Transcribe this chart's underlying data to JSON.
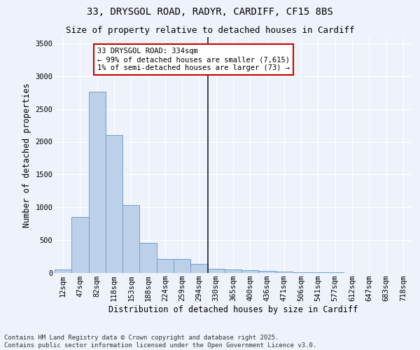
{
  "title_line1": "33, DRYSGOL ROAD, RADYR, CARDIFF, CF15 8BS",
  "title_line2": "Size of property relative to detached houses in Cardiff",
  "xlabel": "Distribution of detached houses by size in Cardiff",
  "ylabel": "Number of detached properties",
  "categories": [
    "12sqm",
    "47sqm",
    "82sqm",
    "118sqm",
    "153sqm",
    "188sqm",
    "224sqm",
    "259sqm",
    "294sqm",
    "330sqm",
    "365sqm",
    "400sqm",
    "436sqm",
    "471sqm",
    "506sqm",
    "541sqm",
    "577sqm",
    "612sqm",
    "647sqm",
    "683sqm",
    "718sqm"
  ],
  "values": [
    55,
    850,
    2760,
    2100,
    1030,
    460,
    215,
    215,
    135,
    65,
    55,
    40,
    30,
    25,
    15,
    10,
    8,
    5,
    4,
    3,
    2
  ],
  "bar_color": "#bdd0e9",
  "bar_edge_color": "#6fa0cb",
  "vline_x_index": 9,
  "vline_color": "#222222",
  "annotation_title": "33 DRYSGOL ROAD: 334sqm",
  "annotation_line1": "← 99% of detached houses are smaller (7,615)",
  "annotation_line2": "1% of semi-detached houses are larger (73) →",
  "annotation_box_facecolor": "#ffffff",
  "annotation_box_edgecolor": "#cc0000",
  "ylim": [
    0,
    3600
  ],
  "yticks": [
    0,
    500,
    1000,
    1500,
    2000,
    2500,
    3000,
    3500
  ],
  "background_color": "#eef2fb",
  "grid_color": "#ffffff",
  "footer_line1": "Contains HM Land Registry data © Crown copyright and database right 2025.",
  "footer_line2": "Contains public sector information licensed under the Open Government Licence v3.0.",
  "title_fontsize": 10,
  "subtitle_fontsize": 9,
  "axis_label_fontsize": 8.5,
  "tick_fontsize": 7.5,
  "annotation_fontsize": 7.5,
  "footer_fontsize": 6.5
}
